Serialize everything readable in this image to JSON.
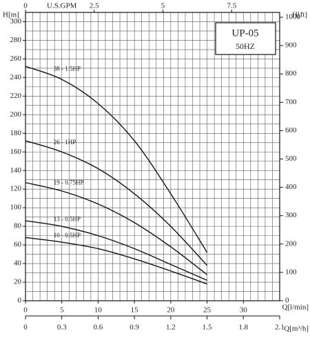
{
  "chart_data": {
    "type": "line",
    "title": "UP-05",
    "subtitle": "50HZ",
    "x_label": "Q[l/min]",
    "y_label": "H[m]",
    "y2_label": "H[ft]",
    "x2_label": "U.S.GPM",
    "x3_label": "Q[m³/h]",
    "x": [
      0,
      5,
      10,
      15,
      20,
      25
    ],
    "series": [
      {
        "name": "38 - 1.5HP",
        "color": "#111111",
        "values": [
          252,
          238,
          212,
          172,
          115,
          52
        ]
      },
      {
        "name": "26 - 1HP",
        "color": "#111111",
        "values": [
          172,
          160,
          142,
          115,
          80,
          38
        ]
      },
      {
        "name": "19 - 0.75HP",
        "color": "#111111",
        "values": [
          127,
          118,
          104,
          84,
          58,
          28
        ]
      },
      {
        "name": "13 - 0.5HP",
        "color": "#111111",
        "values": [
          86,
          80,
          70,
          56,
          39,
          22
        ]
      },
      {
        "name": "10 - 0.5HP",
        "color": "#111111",
        "values": [
          68,
          63,
          56,
          45,
          32,
          18
        ]
      }
    ],
    "xlim": [
      0,
      35
    ],
    "xticks": [
      0,
      5,
      10,
      15,
      20,
      25,
      30
    ],
    "ylim": [
      0,
      310
    ],
    "yticks": [
      0,
      20,
      40,
      60,
      80,
      100,
      120,
      140,
      160,
      180,
      200,
      220,
      240,
      260,
      280,
      300
    ],
    "y2lim": [
      0,
      1017
    ],
    "y2ticks": [
      0,
      100,
      200,
      300,
      400,
      500,
      600,
      700,
      800,
      900,
      1000
    ],
    "x2lim": [
      0,
      9.246
    ],
    "x2ticks": [
      0,
      2.5,
      5,
      7.5
    ],
    "x3lim": [
      0,
      2.1
    ],
    "x3ticks": [
      0,
      0.3,
      0.6,
      0.9,
      1.2,
      1.5,
      1.8,
      2.1
    ],
    "grid": true,
    "grid_step": [
      1,
      10
    ]
  }
}
